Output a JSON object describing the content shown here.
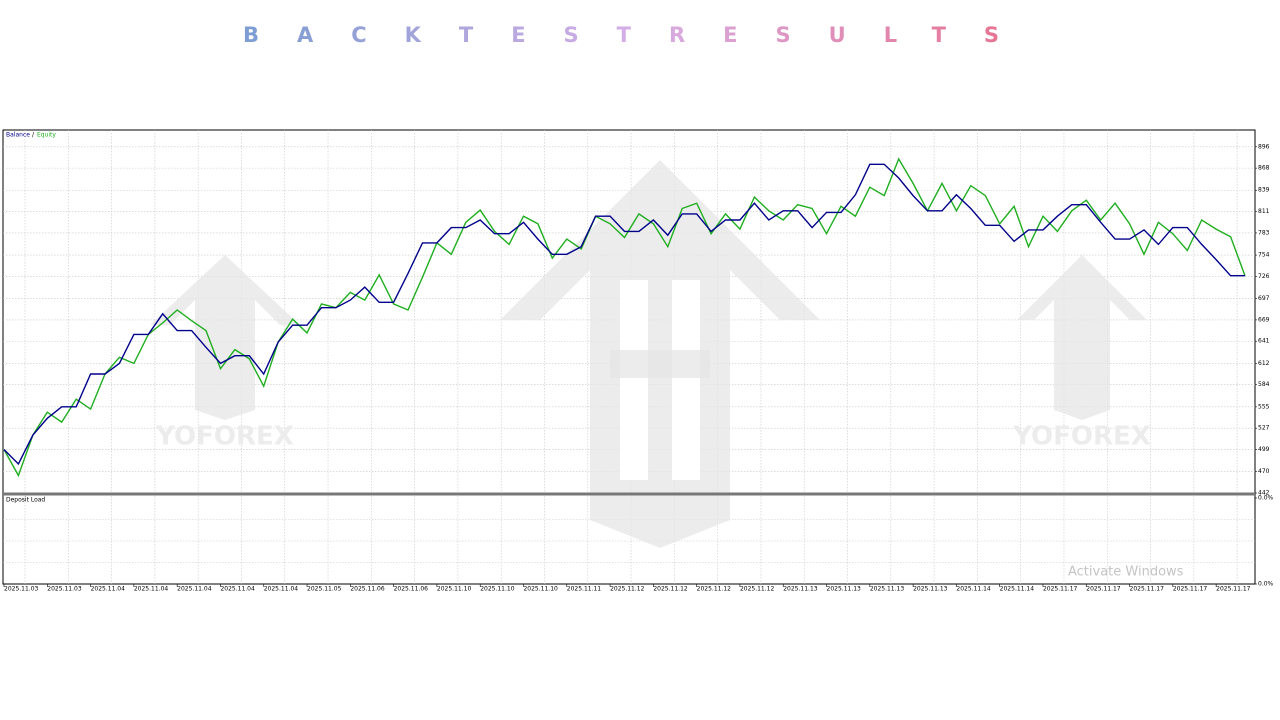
{
  "title": "BACKTESTRESULTS",
  "watermarks": [
    "YOFOREX",
    "YOFOREX"
  ],
  "system_notice": "Activate Windows",
  "chart_data": [
    {
      "type": "line",
      "legend": "top-left",
      "grid": true,
      "ylim": [
        442,
        918
      ],
      "yticks": [
        896,
        868,
        839,
        811,
        783,
        754,
        726,
        697,
        669,
        641,
        612,
        584,
        555,
        527,
        499,
        470,
        442
      ],
      "categories": [
        "2025.11.03",
        null,
        null,
        "2025.11.03",
        null,
        null,
        "2025.11.04",
        null,
        null,
        "2025.11.04",
        null,
        null,
        "2025.11.04",
        null,
        null,
        "2025.11.04",
        null,
        null,
        "2025.11.04",
        null,
        null,
        "2025.11.05",
        null,
        null,
        "2025.11.06",
        null,
        null,
        "2025.11.06",
        null,
        null,
        "2025.11.10",
        null,
        null,
        "2025.11.10",
        null,
        null,
        "2025.11.10",
        null,
        null,
        "2025.11.11",
        null,
        null,
        "2025.11.12",
        null,
        null,
        "2025.11.12",
        null,
        null,
        "2025.11.12",
        null,
        null,
        "2025.11.12",
        null,
        null,
        "2025.11.13",
        null,
        null,
        "2025.11.13",
        null,
        null,
        "2025.11.13",
        null,
        null,
        "2025.11.13",
        null,
        null,
        "2025.11.14",
        null,
        null,
        "2025.11.14",
        null,
        null,
        "2025.11.17",
        null,
        null,
        "2025.11.17",
        null,
        null,
        "2025.11.17",
        null,
        null,
        "2025.11.17",
        null,
        null,
        "2025.11.17",
        null,
        null
      ],
      "series": [
        {
          "name": "Balance",
          "color": "#00008b",
          "values": [
            499,
            480,
            518,
            540,
            555,
            555,
            598,
            598,
            612,
            650,
            650,
            677,
            655,
            655,
            633,
            612,
            622,
            622,
            598,
            640,
            662,
            662,
            685,
            685,
            695,
            712,
            692,
            692,
            730,
            770,
            770,
            790,
            790,
            800,
            782,
            782,
            797,
            775,
            755,
            755,
            765,
            805,
            805,
            785,
            785,
            800,
            780,
            808,
            808,
            785,
            800,
            800,
            822,
            800,
            812,
            812,
            790,
            810,
            810,
            833,
            873,
            873,
            855,
            832,
            812,
            812,
            833,
            815,
            793,
            793,
            772,
            787,
            787,
            805,
            820,
            820,
            797,
            775,
            775,
            787,
            768,
            790,
            790,
            768,
            748,
            727,
            727
          ]
        },
        {
          "name": "Equity",
          "color": "#1fae1f",
          "values": [
            499,
            465,
            518,
            548,
            535,
            565,
            552,
            598,
            620,
            612,
            650,
            665,
            682,
            668,
            655,
            605,
            630,
            618,
            582,
            640,
            670,
            652,
            690,
            685,
            705,
            695,
            728,
            690,
            682,
            725,
            770,
            755,
            797,
            813,
            785,
            768,
            805,
            795,
            750,
            775,
            762,
            805,
            795,
            777,
            808,
            795,
            765,
            815,
            822,
            782,
            808,
            788,
            830,
            812,
            800,
            820,
            815,
            782,
            818,
            805,
            843,
            832,
            880,
            848,
            812,
            848,
            812,
            845,
            832,
            795,
            818,
            765,
            805,
            785,
            812,
            826,
            800,
            822,
            795,
            755,
            797,
            782,
            760,
            800,
            788,
            778,
            727
          ]
        }
      ]
    },
    {
      "type": "line",
      "title": "Deposit Load",
      "ylim": [
        0,
        0.04
      ],
      "yticks": [
        {
          "value": 0.04,
          "label": "0.0%"
        },
        {
          "value": 0,
          "label": "0.0%"
        }
      ]
    }
  ]
}
